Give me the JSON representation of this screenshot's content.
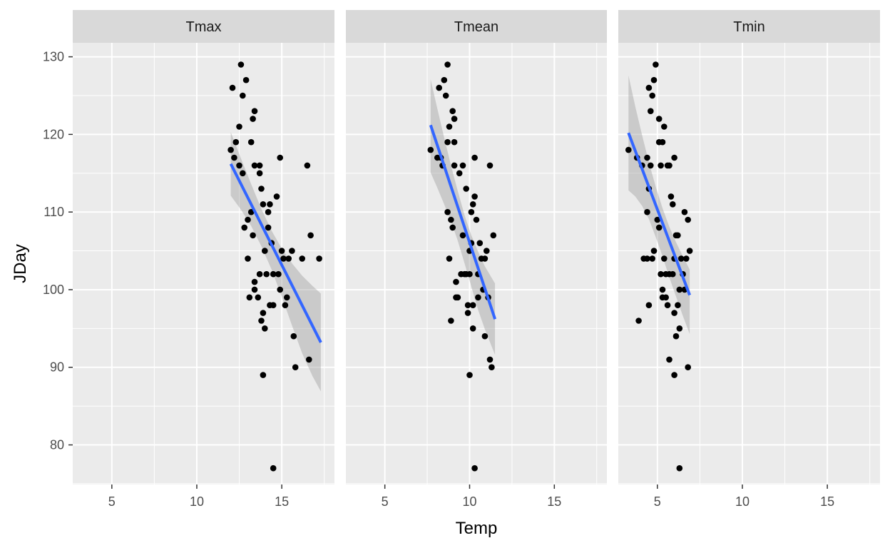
{
  "chart_data": {
    "type": "scatter",
    "xlabel": "Temp",
    "ylabel": "JDay",
    "xlim": [
      2.7,
      18.1
    ],
    "ylim": [
      74.9,
      131.8
    ],
    "x_ticks": [
      5,
      10,
      15
    ],
    "y_ticks": [
      80,
      90,
      100,
      110,
      120,
      130
    ],
    "grid": true,
    "facets": [
      {
        "label": "Tmax",
        "points": [
          [
            12.0,
            118
          ],
          [
            12.1,
            126
          ],
          [
            12.2,
            117
          ],
          [
            12.3,
            119
          ],
          [
            12.5,
            116
          ],
          [
            12.5,
            121
          ],
          [
            12.6,
            129
          ],
          [
            12.7,
            125
          ],
          [
            12.7,
            115
          ],
          [
            12.8,
            108
          ],
          [
            12.9,
            127
          ],
          [
            13.0,
            104
          ],
          [
            13.0,
            109
          ],
          [
            13.1,
            99
          ],
          [
            13.2,
            119
          ],
          [
            13.2,
            110
          ],
          [
            13.3,
            107
          ],
          [
            13.3,
            122
          ],
          [
            13.4,
            123
          ],
          [
            13.4,
            116
          ],
          [
            13.4,
            100
          ],
          [
            13.4,
            101
          ],
          [
            13.6,
            99
          ],
          [
            13.7,
            102
          ],
          [
            13.7,
            116
          ],
          [
            13.7,
            115
          ],
          [
            13.8,
            113
          ],
          [
            13.8,
            96
          ],
          [
            13.9,
            97
          ],
          [
            13.9,
            111
          ],
          [
            13.9,
            89
          ],
          [
            14.0,
            105
          ],
          [
            14.0,
            95
          ],
          [
            14.1,
            102
          ],
          [
            14.2,
            108
          ],
          [
            14.2,
            110
          ],
          [
            14.3,
            98
          ],
          [
            14.3,
            111
          ],
          [
            14.4,
            106
          ],
          [
            14.5,
            77
          ],
          [
            14.5,
            98
          ],
          [
            14.5,
            102
          ],
          [
            14.7,
            112
          ],
          [
            14.8,
            102
          ],
          [
            14.9,
            117
          ],
          [
            14.9,
            100
          ],
          [
            15.0,
            105
          ],
          [
            15.1,
            104
          ],
          [
            15.2,
            98
          ],
          [
            15.3,
            99
          ],
          [
            15.4,
            104
          ],
          [
            15.6,
            105
          ],
          [
            15.7,
            94
          ],
          [
            15.8,
            90
          ],
          [
            16.2,
            104
          ],
          [
            16.5,
            116
          ],
          [
            16.6,
            91
          ],
          [
            16.7,
            107
          ],
          [
            17.2,
            104
          ]
        ],
        "fit": {
          "x": [
            12.0,
            17.3
          ],
          "y": [
            116.2,
            93.2
          ]
        },
        "ribbon": {
          "x": [
            12.0,
            12.6,
            13.2,
            13.8,
            14.4,
            15.0,
            15.6,
            16.2,
            16.8,
            17.3
          ],
          "upper": [
            120.3,
            116.9,
            113.6,
            110.4,
            107.6,
            105.3,
            103.4,
            101.8,
            100.5,
            99.5
          ],
          "lower": [
            112.1,
            110.3,
            108.2,
            105.6,
            102.6,
            99.1,
            95.4,
            91.8,
            88.9,
            86.9
          ]
        }
      },
      {
        "label": "Tmean",
        "points": [
          [
            7.7,
            118
          ],
          [
            8.1,
            117
          ],
          [
            8.2,
            126
          ],
          [
            8.3,
            117
          ],
          [
            8.4,
            116
          ],
          [
            8.5,
            127
          ],
          [
            8.6,
            125
          ],
          [
            8.7,
            129
          ],
          [
            8.7,
            119
          ],
          [
            8.7,
            110
          ],
          [
            8.8,
            104
          ],
          [
            8.8,
            121
          ],
          [
            8.9,
            96
          ],
          [
            8.9,
            109
          ],
          [
            9.0,
            123
          ],
          [
            9.0,
            108
          ],
          [
            9.1,
            119
          ],
          [
            9.1,
            122
          ],
          [
            9.1,
            116
          ],
          [
            9.2,
            101
          ],
          [
            9.2,
            99
          ],
          [
            9.3,
            99
          ],
          [
            9.4,
            115
          ],
          [
            9.5,
            102
          ],
          [
            9.6,
            116
          ],
          [
            9.6,
            107
          ],
          [
            9.7,
            102
          ],
          [
            9.8,
            113
          ],
          [
            9.8,
            102
          ],
          [
            9.9,
            98
          ],
          [
            9.9,
            97
          ],
          [
            10.0,
            89
          ],
          [
            10.0,
            102
          ],
          [
            10.0,
            105
          ],
          [
            10.1,
            106
          ],
          [
            10.1,
            110
          ],
          [
            10.2,
            111
          ],
          [
            10.2,
            98
          ],
          [
            10.2,
            95
          ],
          [
            10.3,
            77
          ],
          [
            10.3,
            112
          ],
          [
            10.3,
            117
          ],
          [
            10.4,
            109
          ],
          [
            10.5,
            99
          ],
          [
            10.5,
            102
          ],
          [
            10.6,
            106
          ],
          [
            10.7,
            104
          ],
          [
            10.8,
            100
          ],
          [
            10.9,
            104
          ],
          [
            10.9,
            94
          ],
          [
            11.0,
            105
          ],
          [
            11.1,
            99
          ],
          [
            11.2,
            116
          ],
          [
            11.2,
            91
          ],
          [
            11.3,
            90
          ],
          [
            11.4,
            107
          ]
        ],
        "fit": {
          "x": [
            7.7,
            11.5
          ],
          "y": [
            121.2,
            96.2
          ]
        },
        "ribbon": {
          "x": [
            7.7,
            8.1,
            8.5,
            8.9,
            9.3,
            9.7,
            10.1,
            10.5,
            10.9,
            11.5
          ],
          "upper": [
            127.1,
            123.3,
            119.6,
            116.0,
            112.7,
            109.6,
            107.0,
            104.9,
            103.0,
            100.8
          ],
          "lower": [
            115.1,
            113.1,
            111.0,
            108.8,
            106.3,
            103.4,
            100.4,
            97.4,
            94.9,
            91.6
          ]
        }
      },
      {
        "label": "Tmin",
        "points": [
          [
            3.3,
            118
          ],
          [
            3.8,
            117
          ],
          [
            3.9,
            96
          ],
          [
            4.1,
            116
          ],
          [
            4.2,
            104
          ],
          [
            4.4,
            117
          ],
          [
            4.4,
            110
          ],
          [
            4.4,
            104
          ],
          [
            4.5,
            126
          ],
          [
            4.5,
            113
          ],
          [
            4.5,
            98
          ],
          [
            4.6,
            123
          ],
          [
            4.6,
            116
          ],
          [
            4.7,
            104
          ],
          [
            4.7,
            125
          ],
          [
            4.8,
            127
          ],
          [
            4.8,
            105
          ],
          [
            4.9,
            129
          ],
          [
            5.0,
            109
          ],
          [
            5.1,
            108
          ],
          [
            5.1,
            119
          ],
          [
            5.1,
            122
          ],
          [
            5.2,
            102
          ],
          [
            5.2,
            116
          ],
          [
            5.3,
            99
          ],
          [
            5.3,
            119
          ],
          [
            5.3,
            100
          ],
          [
            5.4,
            104
          ],
          [
            5.4,
            121
          ],
          [
            5.5,
            102
          ],
          [
            5.5,
            99
          ],
          [
            5.6,
            116
          ],
          [
            5.6,
            98
          ],
          [
            5.7,
            91
          ],
          [
            5.7,
            102
          ],
          [
            5.7,
            116
          ],
          [
            5.8,
            112
          ],
          [
            5.9,
            111
          ],
          [
            5.9,
            102
          ],
          [
            6.0,
            97
          ],
          [
            6.0,
            89
          ],
          [
            6.0,
            117
          ],
          [
            6.0,
            104
          ],
          [
            6.1,
            107
          ],
          [
            6.1,
            94
          ],
          [
            6.2,
            98
          ],
          [
            6.2,
            107
          ],
          [
            6.3,
            77
          ],
          [
            6.3,
            100
          ],
          [
            6.3,
            95
          ],
          [
            6.4,
            104
          ],
          [
            6.5,
            102
          ],
          [
            6.6,
            110
          ],
          [
            6.6,
            100
          ],
          [
            6.7,
            104
          ],
          [
            6.8,
            109
          ],
          [
            6.8,
            90
          ],
          [
            6.9,
            105
          ]
        ],
        "fit": {
          "x": [
            3.3,
            6.9
          ],
          "y": [
            120.2,
            99.3
          ]
        },
        "ribbon": {
          "x": [
            3.3,
            3.7,
            4.1,
            4.5,
            4.9,
            5.3,
            5.7,
            6.1,
            6.5,
            6.9
          ],
          "upper": [
            127.6,
            123.6,
            119.9,
            116.4,
            113.3,
            110.5,
            108.1,
            106.1,
            104.3,
            102.6
          ],
          "lower": [
            112.8,
            112.0,
            110.8,
            109.1,
            106.8,
            104.3,
            101.6,
            99.1,
            96.6,
            94.3
          ]
        }
      }
    ],
    "colors": {
      "point": "#000000",
      "fit_line": "#3366ff",
      "ribbon": "#999999",
      "panel_bg": "#ebebeb",
      "strip_bg": "#d9d9d9",
      "grid": "#ffffff"
    }
  }
}
